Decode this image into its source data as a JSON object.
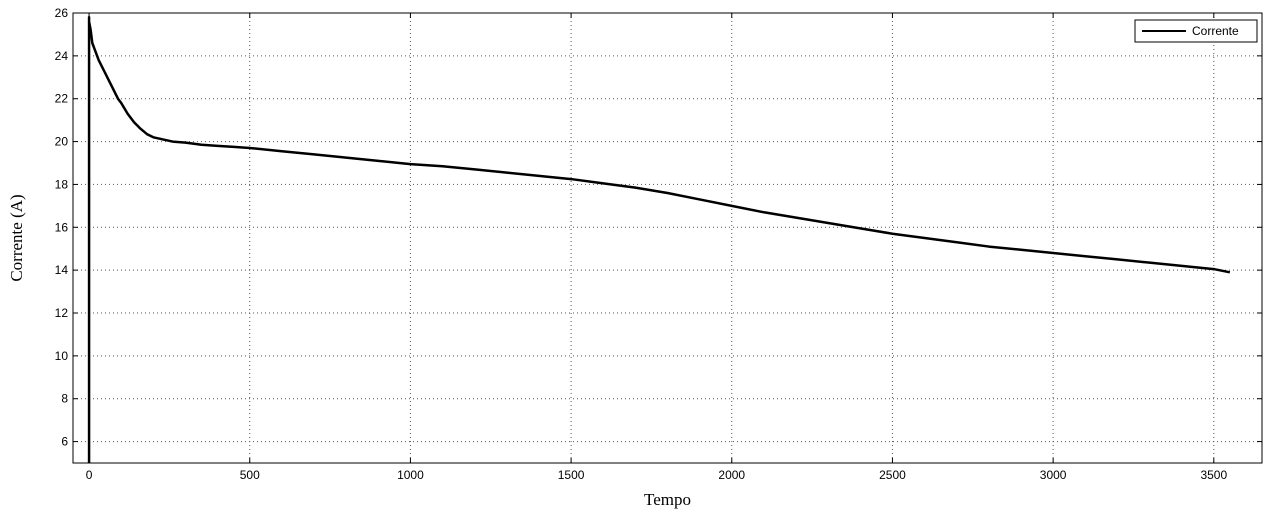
{
  "chart_data": {
    "type": "line",
    "title": "",
    "xlabel": "Tempo",
    "ylabel": "Corrente (A)",
    "xlim": [
      -50,
      3650
    ],
    "ylim": [
      5,
      26
    ],
    "xticks": [
      0,
      500,
      1000,
      1500,
      2000,
      2500,
      3000,
      3500
    ],
    "yticks": [
      6,
      8,
      10,
      12,
      14,
      16,
      18,
      20,
      22,
      24,
      26
    ],
    "grid": true,
    "legend_position": "top-right",
    "series": [
      {
        "name": "Corrente",
        "color": "#000000",
        "x": [
          0,
          0,
          0,
          5,
          10,
          20,
          30,
          40,
          50,
          60,
          70,
          80,
          90,
          100,
          120,
          140,
          160,
          180,
          200,
          230,
          260,
          300,
          350,
          400,
          450,
          500,
          600,
          700,
          800,
          900,
          1000,
          1100,
          1200,
          1300,
          1400,
          1500,
          1600,
          1700,
          1800,
          1900,
          2000,
          2100,
          2200,
          2300,
          2400,
          2500,
          2600,
          2700,
          2800,
          2900,
          3000,
          3100,
          3200,
          3300,
          3400,
          3500,
          3550
        ],
        "y": [
          5,
          25.8,
          25.6,
          25.2,
          24.6,
          24.2,
          23.8,
          23.5,
          23.2,
          22.9,
          22.6,
          22.3,
          22.0,
          21.8,
          21.3,
          20.9,
          20.6,
          20.35,
          20.2,
          20.1,
          20.0,
          19.95,
          19.85,
          19.8,
          19.75,
          19.7,
          19.55,
          19.4,
          19.25,
          19.1,
          18.95,
          18.85,
          18.7,
          18.55,
          18.4,
          18.25,
          18.05,
          17.85,
          17.6,
          17.3,
          17.0,
          16.7,
          16.45,
          16.2,
          15.95,
          15.7,
          15.5,
          15.3,
          15.1,
          14.95,
          14.8,
          14.65,
          14.5,
          14.35,
          14.2,
          14.05,
          13.9
        ]
      }
    ]
  }
}
